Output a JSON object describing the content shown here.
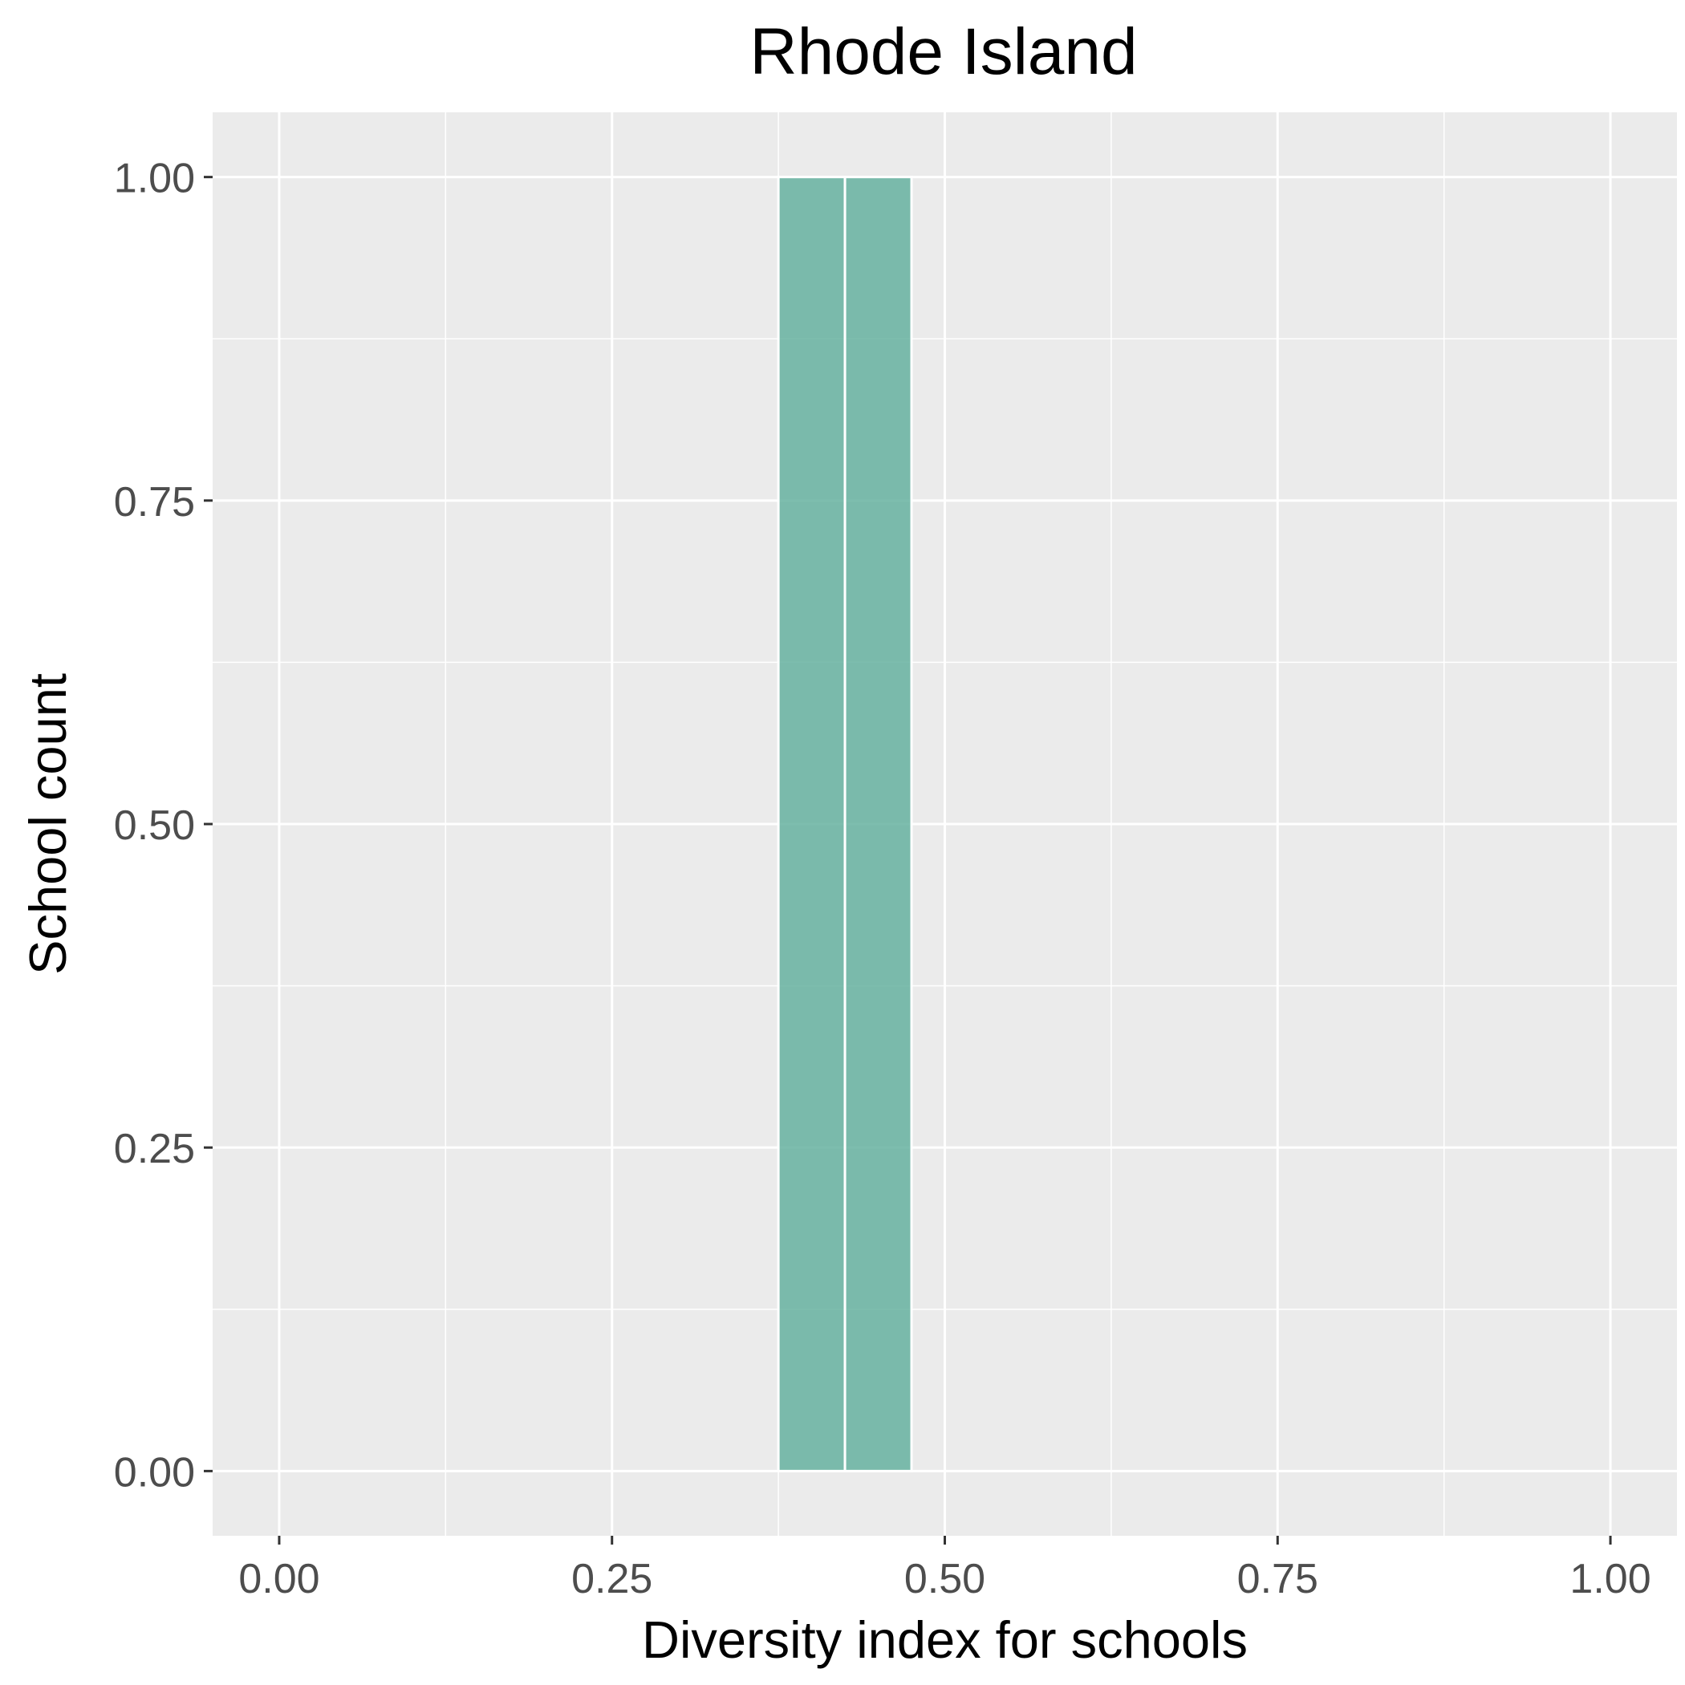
{
  "chart_data": {
    "type": "bar",
    "title": "Rhode Island",
    "xlabel": "Diversity index for schools",
    "ylabel": "School count",
    "xlim": [
      -0.05,
      1.05
    ],
    "ylim": [
      -0.05,
      1.05
    ],
    "x_ticks": [
      "0.00",
      "0.25",
      "0.50",
      "0.75",
      "1.00"
    ],
    "y_ticks": [
      "0.00",
      "0.25",
      "0.50",
      "0.75",
      "1.00"
    ],
    "bin_width": 0.05,
    "bins": [
      {
        "x0": 0.375,
        "x1": 0.425,
        "count": 1
      },
      {
        "x0": 0.425,
        "x1": 0.475,
        "count": 1
      }
    ],
    "grid": true,
    "legend": "none",
    "colors": {
      "panel": "#EBEBEB",
      "grid": "#FFFFFF",
      "bar": "#66B2A0"
    }
  }
}
